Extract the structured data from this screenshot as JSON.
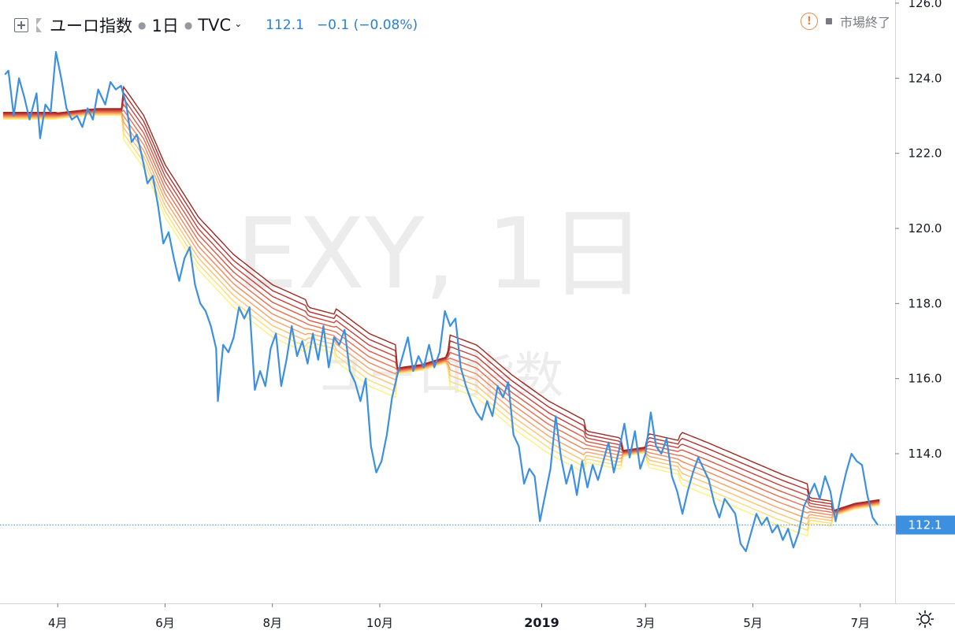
{
  "legend": {
    "symbol_name": "ユーロ指数",
    "interval": "1日",
    "exchange": "TVC",
    "last": "112.1",
    "change": "−0.1 (−0.08%)"
  },
  "status": {
    "label": "市場終了",
    "warning": "!"
  },
  "watermark": {
    "main": "EXY, 1日",
    "sub": "ユーロ指数"
  },
  "price_tag": "112.1",
  "colors": {
    "price_line": "#3d8fe0",
    "ribbon": [
      "#fff07a",
      "#ffdb76",
      "#fdc171",
      "#f7a467",
      "#f0885c",
      "#e66f50",
      "#d95745",
      "#c7423a",
      "#b3312f",
      "#9b2a20"
    ]
  },
  "chart_data": {
    "type": "line",
    "title": "",
    "xlabel": "",
    "ylabel": "",
    "ylim": [
      110.0,
      126.0
    ],
    "y_ticks": [
      "126.0",
      "124.0",
      "122.0",
      "120.0",
      "118.0",
      "116.0",
      "114.0"
    ],
    "x_ticks": [
      {
        "label": "4月",
        "date": "2018-04-01"
      },
      {
        "label": "6月",
        "date": "2018-06-01"
      },
      {
        "label": "8月",
        "date": "2018-08-01"
      },
      {
        "label": "10月",
        "date": "2018-10-01"
      },
      {
        "label": "2019",
        "date": "2019-01-01"
      },
      {
        "label": "3月",
        "date": "2019-03-01"
      },
      {
        "label": "5月",
        "date": "2019-05-01"
      },
      {
        "label": "7月",
        "date": "2019-07-01"
      }
    ],
    "x_range": [
      "2018-03-01",
      "2019-07-15"
    ],
    "grid": false,
    "series": [
      {
        "points": [
          [
            "2018-03-02",
            124.1
          ],
          [
            "2018-03-04",
            124.2
          ],
          [
            "2018-03-07",
            123.0
          ],
          [
            "2018-03-10",
            124.0
          ],
          [
            "2018-03-13",
            123.5
          ],
          [
            "2018-03-16",
            122.9
          ],
          [
            "2018-03-20",
            123.6
          ],
          [
            "2018-03-22",
            122.4
          ],
          [
            "2018-03-25",
            123.3
          ],
          [
            "2018-03-28",
            123.1
          ],
          [
            "2018-03-31",
            124.7
          ],
          [
            "2018-04-03",
            124.0
          ],
          [
            "2018-04-06",
            123.2
          ],
          [
            "2018-04-09",
            122.9
          ],
          [
            "2018-04-12",
            123.0
          ],
          [
            "2018-04-15",
            122.7
          ],
          [
            "2018-04-18",
            123.2
          ],
          [
            "2018-04-21",
            122.9
          ],
          [
            "2018-04-24",
            123.7
          ],
          [
            "2018-04-28",
            123.3
          ],
          [
            "2018-05-01",
            123.9
          ],
          [
            "2018-05-04",
            123.7
          ],
          [
            "2018-05-07",
            123.8
          ],
          [
            "2018-05-10",
            123.3
          ],
          [
            "2018-05-13",
            122.3
          ],
          [
            "2018-05-16",
            122.5
          ],
          [
            "2018-05-19",
            121.9
          ],
          [
            "2018-05-22",
            121.2
          ],
          [
            "2018-05-25",
            121.4
          ],
          [
            "2018-05-28",
            120.6
          ],
          [
            "2018-05-31",
            119.6
          ],
          [
            "2018-06-03",
            119.9
          ],
          [
            "2018-06-06",
            119.2
          ],
          [
            "2018-06-09",
            118.6
          ],
          [
            "2018-06-12",
            119.2
          ],
          [
            "2018-06-15",
            119.5
          ],
          [
            "2018-06-18",
            118.5
          ],
          [
            "2018-06-21",
            118.0
          ],
          [
            "2018-06-24",
            117.8
          ],
          [
            "2018-06-27",
            117.4
          ],
          [
            "2018-06-30",
            116.8
          ],
          [
            "2018-07-01",
            115.4
          ],
          [
            "2018-07-04",
            116.9
          ],
          [
            "2018-07-07",
            116.7
          ],
          [
            "2018-07-10",
            117.1
          ],
          [
            "2018-07-13",
            117.9
          ],
          [
            "2018-07-16",
            117.6
          ],
          [
            "2018-07-19",
            117.9
          ],
          [
            "2018-07-22",
            115.7
          ],
          [
            "2018-07-25",
            116.2
          ],
          [
            "2018-07-28",
            115.8
          ],
          [
            "2018-07-31",
            116.8
          ],
          [
            "2018-08-03",
            117.2
          ],
          [
            "2018-08-06",
            115.8
          ],
          [
            "2018-08-09",
            116.5
          ],
          [
            "2018-08-12",
            117.4
          ],
          [
            "2018-08-15",
            116.6
          ],
          [
            "2018-08-18",
            117.0
          ],
          [
            "2018-08-21",
            116.4
          ],
          [
            "2018-08-24",
            117.2
          ],
          [
            "2018-08-27",
            116.5
          ],
          [
            "2018-08-30",
            117.4
          ],
          [
            "2018-09-02",
            116.3
          ],
          [
            "2018-09-05",
            117.1
          ],
          [
            "2018-09-08",
            116.9
          ],
          [
            "2018-09-11",
            117.3
          ],
          [
            "2018-09-14",
            116.2
          ],
          [
            "2018-09-17",
            115.9
          ],
          [
            "2018-09-20",
            115.4
          ],
          [
            "2018-09-23",
            116.0
          ],
          [
            "2018-09-26",
            114.2
          ],
          [
            "2018-09-29",
            113.5
          ],
          [
            "2018-10-02",
            113.8
          ],
          [
            "2018-10-05",
            114.5
          ],
          [
            "2018-10-08",
            115.5
          ],
          [
            "2018-10-11",
            116.1
          ],
          [
            "2018-10-14",
            116.6
          ],
          [
            "2018-10-17",
            117.1
          ],
          [
            "2018-10-20",
            116.2
          ],
          [
            "2018-10-23",
            116.6
          ],
          [
            "2018-10-26",
            116.3
          ],
          [
            "2018-10-29",
            116.9
          ],
          [
            "2018-11-01",
            116.3
          ],
          [
            "2018-11-04",
            116.7
          ],
          [
            "2018-11-07",
            117.8
          ],
          [
            "2018-11-10",
            117.4
          ],
          [
            "2018-11-13",
            117.6
          ],
          [
            "2018-11-16",
            116.3
          ],
          [
            "2018-11-19",
            115.8
          ],
          [
            "2018-11-22",
            115.4
          ],
          [
            "2018-11-25",
            115.1
          ],
          [
            "2018-11-28",
            114.9
          ],
          [
            "2018-12-01",
            115.4
          ],
          [
            "2018-12-04",
            115.0
          ],
          [
            "2018-12-07",
            115.8
          ],
          [
            "2018-12-10",
            115.5
          ],
          [
            "2018-12-13",
            115.9
          ],
          [
            "2018-12-16",
            114.5
          ],
          [
            "2018-12-19",
            114.2
          ],
          [
            "2018-12-22",
            113.2
          ],
          [
            "2018-12-25",
            113.6
          ],
          [
            "2018-12-28",
            113.4
          ],
          [
            "2018-12-31",
            112.2
          ],
          [
            "2019-01-03",
            112.9
          ],
          [
            "2019-01-06",
            113.6
          ],
          [
            "2019-01-09",
            115.0
          ],
          [
            "2019-01-12",
            113.9
          ],
          [
            "2019-01-15",
            113.2
          ],
          [
            "2019-01-18",
            113.7
          ],
          [
            "2019-01-21",
            112.9
          ],
          [
            "2019-01-24",
            113.8
          ],
          [
            "2019-01-27",
            113.1
          ],
          [
            "2019-01-30",
            113.7
          ],
          [
            "2019-02-02",
            113.3
          ],
          [
            "2019-02-05",
            113.8
          ],
          [
            "2019-02-08",
            114.3
          ],
          [
            "2019-02-11",
            113.5
          ],
          [
            "2019-02-14",
            114.1
          ],
          [
            "2019-02-17",
            114.8
          ],
          [
            "2019-02-20",
            113.9
          ],
          [
            "2019-02-23",
            114.6
          ],
          [
            "2019-02-26",
            113.6
          ],
          [
            "2019-03-01",
            114.0
          ],
          [
            "2019-03-04",
            115.1
          ],
          [
            "2019-03-07",
            114.2
          ],
          [
            "2019-03-10",
            114.0
          ],
          [
            "2019-03-13",
            114.4
          ],
          [
            "2019-03-16",
            113.4
          ],
          [
            "2019-03-19",
            113.0
          ],
          [
            "2019-03-22",
            112.4
          ],
          [
            "2019-03-25",
            113.0
          ],
          [
            "2019-03-28",
            113.5
          ],
          [
            "2019-03-31",
            113.9
          ],
          [
            "2019-04-03",
            113.6
          ],
          [
            "2019-04-06",
            113.3
          ],
          [
            "2019-04-09",
            112.7
          ],
          [
            "2019-04-12",
            112.3
          ],
          [
            "2019-04-15",
            112.8
          ],
          [
            "2019-04-18",
            112.6
          ],
          [
            "2019-04-21",
            112.4
          ],
          [
            "2019-04-24",
            111.6
          ],
          [
            "2019-04-27",
            111.4
          ],
          [
            "2019-04-30",
            111.9
          ],
          [
            "2019-05-03",
            112.4
          ],
          [
            "2019-05-06",
            112.1
          ],
          [
            "2019-05-09",
            112.3
          ],
          [
            "2019-05-12",
            111.9
          ],
          [
            "2019-05-15",
            112.1
          ],
          [
            "2019-05-18",
            111.7
          ],
          [
            "2019-05-21",
            112.0
          ],
          [
            "2019-05-24",
            111.5
          ],
          [
            "2019-05-27",
            111.9
          ],
          [
            "2019-05-30",
            112.6
          ],
          [
            "2019-06-02",
            112.9
          ],
          [
            "2019-06-05",
            113.2
          ],
          [
            "2019-06-08",
            112.8
          ],
          [
            "2019-06-11",
            113.4
          ],
          [
            "2019-06-14",
            113.0
          ],
          [
            "2019-06-17",
            112.2
          ],
          [
            "2019-06-20",
            112.9
          ],
          [
            "2019-06-23",
            113.5
          ],
          [
            "2019-06-26",
            114.0
          ],
          [
            "2019-06-29",
            113.8
          ],
          [
            "2019-07-02",
            113.7
          ],
          [
            "2019-07-05",
            112.9
          ],
          [
            "2019-07-08",
            112.3
          ],
          [
            "2019-07-11",
            112.1
          ]
        ]
      }
    ],
    "ribbon_centerline": [
      [
        "2018-03-01",
        123.0
      ],
      [
        "2018-04-01",
        123.0
      ],
      [
        "2018-04-20",
        123.1
      ],
      [
        "2018-05-08",
        123.1
      ],
      [
        "2018-05-20",
        122.3
      ],
      [
        "2018-06-01",
        121.0
      ],
      [
        "2018-06-20",
        119.6
      ],
      [
        "2018-07-10",
        118.6
      ],
      [
        "2018-08-01",
        117.8
      ],
      [
        "2018-08-20",
        117.4
      ],
      [
        "2018-09-05",
        117.2
      ],
      [
        "2018-09-25",
        116.5
      ],
      [
        "2018-10-10",
        116.2
      ],
      [
        "2018-10-25",
        116.3
      ],
      [
        "2018-11-08",
        116.5
      ],
      [
        "2018-11-25",
        116.2
      ],
      [
        "2018-12-15",
        115.4
      ],
      [
        "2019-01-05",
        114.7
      ],
      [
        "2019-01-25",
        114.2
      ],
      [
        "2019-02-15",
        114.0
      ],
      [
        "2019-03-01",
        114.1
      ],
      [
        "2019-03-20",
        113.9
      ],
      [
        "2019-04-05",
        113.6
      ],
      [
        "2019-04-25",
        113.2
      ],
      [
        "2019-05-15",
        112.8
      ],
      [
        "2019-06-01",
        112.5
      ],
      [
        "2019-06-15",
        112.4
      ],
      [
        "2019-06-28",
        112.6
      ],
      [
        "2019-07-12",
        112.7
      ]
    ],
    "last_value": 112.1
  }
}
